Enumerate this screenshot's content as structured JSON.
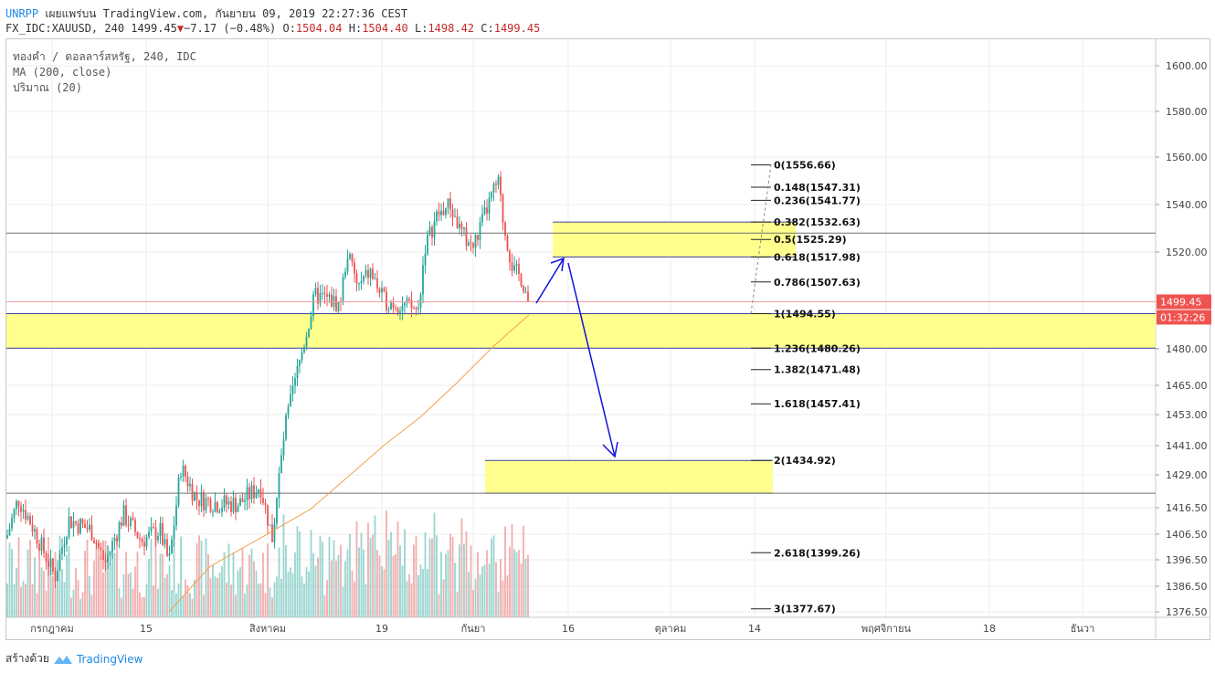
{
  "header": {
    "author": "UNRPP",
    "published": "เผยแพร่บน TradingView.com, กันยายน 09, 2019 22:27:36 CEST",
    "symbol_line": "FX_IDC:XAUUSD, 240 1499.45",
    "change": "−7.17 (−0.48%)",
    "o_label": "O:",
    "o": "1504.04",
    "h_label": "H:",
    "h": "1504.40",
    "l_label": "L:",
    "l": "1498.42",
    "c_label": "C:",
    "c": "1499.45"
  },
  "legend": {
    "line1": "ทองคำ / ดอลลาร์สหรัฐ, 240, IDC",
    "line2": "MA (200, close)",
    "line3": "ปริมาณ (20)"
  },
  "footer": {
    "made_with": "สร้างด้วย",
    "brand": "TradingView"
  },
  "chart_data": {
    "type": "candlestick",
    "symbol": "FX_IDC:XAUUSD",
    "interval": "240",
    "price_axis_ticks": [
      "1600.00",
      "1580.00",
      "1560.00",
      "1540.00",
      "1520.00",
      "1480.00",
      "1465.00",
      "1453.00",
      "1441.00",
      "1429.00",
      "1416.50",
      "1406.50",
      "1396.50",
      "1386.50",
      "1376.50"
    ],
    "price_axis_values": [
      1600.0,
      1580.0,
      1560.0,
      1540.0,
      1520.0,
      1480.0,
      1465.0,
      1453.0,
      1441.0,
      1429.0,
      1416.5,
      1406.5,
      1396.5,
      1386.5,
      1376.5
    ],
    "time_axis_labels": [
      "กรกฎาคม",
      "15",
      "สิงหาคม",
      "19",
      "กันยา",
      "16",
      "ตุลาคม",
      "14",
      "พฤศจิกายน",
      "18",
      "ธันวา"
    ],
    "current_price": "1499.45",
    "countdown": "01:32:26",
    "fib_levels": [
      {
        "label": "0(1556.66)",
        "value": 1556.66
      },
      {
        "label": "0.148(1547.31)",
        "value": 1547.31
      },
      {
        "label": "0.236(1541.77)",
        "value": 1541.77
      },
      {
        "label": "0.382(1532.63)",
        "value": 1532.63
      },
      {
        "label": "0.5(1525.29)",
        "value": 1525.29
      },
      {
        "label": "0.618(1517.98)",
        "value": 1517.98
      },
      {
        "label": "0.786(1507.63)",
        "value": 1507.63
      },
      {
        "label": "1(1494.55)",
        "value": 1494.55
      },
      {
        "label": "1.236(1480.26)",
        "value": 1480.26
      },
      {
        "label": "1.382(1471.48)",
        "value": 1471.48
      },
      {
        "label": "1.618(1457.41)",
        "value": 1457.41
      },
      {
        "label": "2(1434.92)",
        "value": 1434.92
      },
      {
        "label": "2.618(1399.26)",
        "value": 1399.26
      },
      {
        "label": "3(1377.67)",
        "value": 1377.67
      }
    ],
    "zones": [
      {
        "name": "support-zone",
        "top": 1494.55,
        "bottom": 1480.26
      },
      {
        "name": "resistance-zone",
        "top": 1532.63,
        "bottom": 1517.98
      },
      {
        "name": "target-zone",
        "top": 1434.92,
        "bottom": 1422.0
      }
    ],
    "horizontal_lines": [
      1528.0,
      1422.0
    ],
    "colors": {
      "up": "#26a69a",
      "down": "#ef5350",
      "vol_up": "#80cbc4",
      "vol_down": "#ef9a9a",
      "ma": "#f5a04a",
      "zone": "#ffff8d",
      "arrow": "#1010e0",
      "price_tag": "#ef5350",
      "countdown_tag": "#ef5350",
      "fib": "#222222"
    }
  }
}
